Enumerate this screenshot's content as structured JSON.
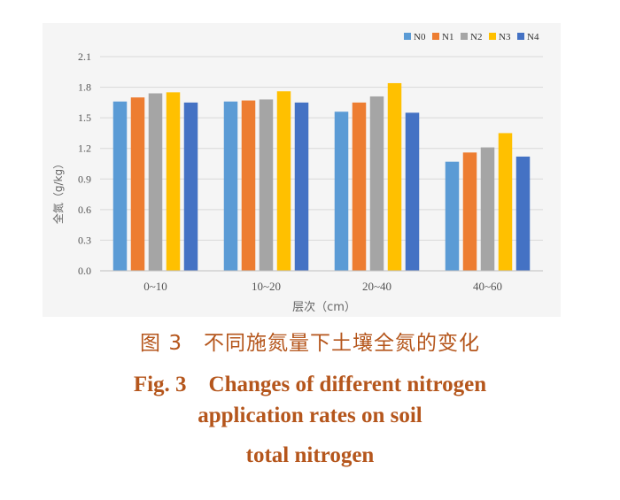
{
  "chart_data": {
    "type": "bar",
    "ylabel": "全氮（g/kg）",
    "xlabel": "层次（cm）",
    "categories": [
      "0~10",
      "10~20",
      "20~40",
      "40~60"
    ],
    "yticks": [
      "0.0",
      "0.3",
      "0.6",
      "0.9",
      "1.2",
      "1.5",
      "1.8",
      "2.1"
    ],
    "ylim": [
      0,
      2.1
    ],
    "legend_position": "top-right",
    "series": [
      {
        "name": "N0",
        "color": "#5b9bd5",
        "values": [
          1.66,
          1.66,
          1.56,
          1.07
        ]
      },
      {
        "name": "N1",
        "color": "#ed7d31",
        "values": [
          1.7,
          1.67,
          1.65,
          1.16
        ]
      },
      {
        "name": "N2",
        "color": "#a5a5a5",
        "values": [
          1.74,
          1.68,
          1.71,
          1.21
        ]
      },
      {
        "name": "N3",
        "color": "#ffc000",
        "values": [
          1.75,
          1.76,
          1.84,
          1.35
        ]
      },
      {
        "name": "N4",
        "color": "#4472c4",
        "values": [
          1.65,
          1.65,
          1.55,
          1.12
        ]
      }
    ]
  },
  "caption": {
    "cn": "图 3　不同施氮量下土壤全氮的变化",
    "en_line1": "Fig. 3　Changes of different nitrogen",
    "en_line2": "application rates on soil",
    "en_line3": "total nitrogen"
  }
}
